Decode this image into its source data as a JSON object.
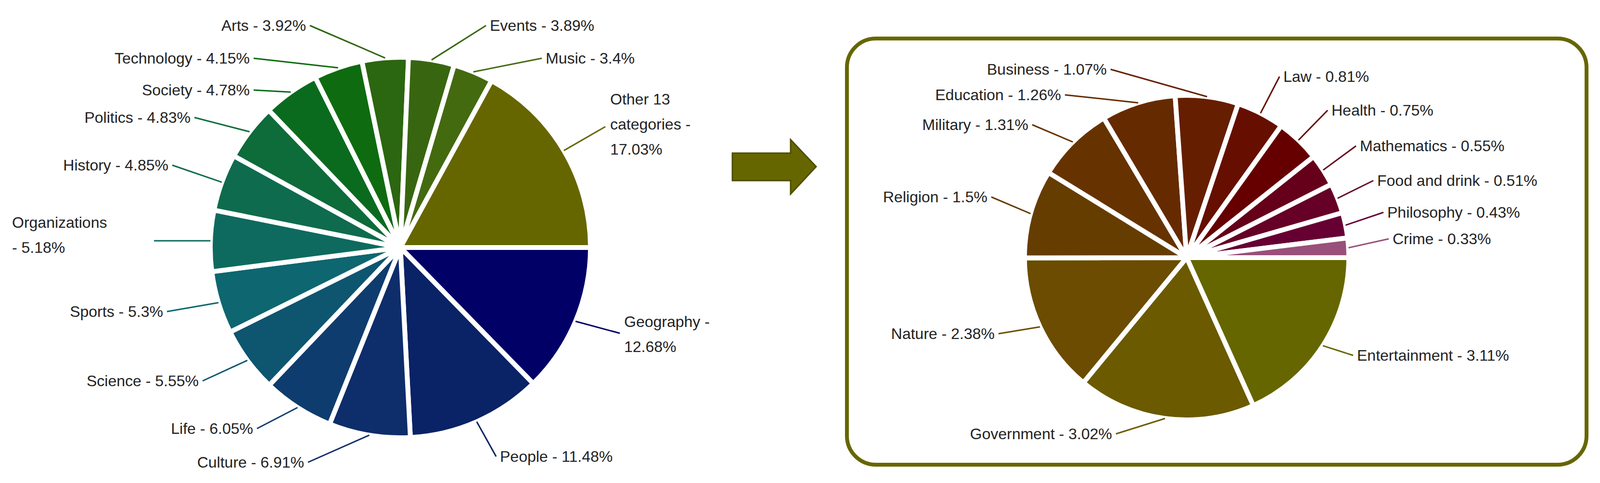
{
  "chart_data": [
    {
      "type": "pie",
      "categories": [
        "Geography",
        "People",
        "Culture",
        "Life",
        "Science",
        "Sports",
        "Organizations",
        "History",
        "Politics",
        "Society",
        "Technology",
        "Arts",
        "Events",
        "Music",
        "Other 13 categories"
      ],
      "values": [
        12.68,
        11.48,
        6.91,
        6.05,
        5.55,
        5.3,
        5.18,
        4.85,
        4.83,
        4.78,
        4.15,
        3.92,
        3.89,
        3.4,
        17.03
      ],
      "value_labels": [
        "Geography - 12.68%",
        "People - 11.48%",
        "Culture - 6.91%",
        "Life - 6.05%",
        "Science - 5.55%",
        "Sports - 5.3%",
        "Organizations - 5.18%",
        "History - 4.85%",
        "Politics - 4.83%",
        "Society - 4.78%",
        "Technology - 4.15%",
        "Arts - 3.92%",
        "Events - 3.89%",
        "Music - 3.4%",
        "Other 13 categories - 17.03%"
      ],
      "colors": [
        "#000066",
        "#0a2266",
        "#0d2d6b",
        "#0f3c6e",
        "#0e5570",
        "#0d6670",
        "#0e6a5e",
        "#0e6b4e",
        "#0e6b3a",
        "#0a6b1e",
        "#0f6b10",
        "#2b6610",
        "#386610",
        "#446a10",
        "#666600"
      ]
    },
    {
      "type": "pie",
      "categories": [
        "Entertainment",
        "Government",
        "Nature",
        "Religion",
        "Military",
        "Education",
        "Business",
        "Law",
        "Health",
        "Mathematics",
        "Food and drink",
        "Philosophy",
        "Crime"
      ],
      "values": [
        3.11,
        3.02,
        2.38,
        1.5,
        1.31,
        1.26,
        1.07,
        0.81,
        0.75,
        0.55,
        0.51,
        0.43,
        0.33
      ],
      "value_labels": [
        "Entertainment - 3.11%",
        "Government - 3.02%",
        "Nature - 2.38%",
        "Religion - 1.5%",
        "Military - 1.31%",
        "Education - 1.26%",
        "Business - 1.07%",
        "Law - 0.81%",
        "Health - 0.75%",
        "Mathematics - 0.55%",
        "Food and drink - 0.51%",
        "Philosophy - 0.43%",
        "Crime - 0.33%"
      ],
      "colors": [
        "#666600",
        "#6b5a00",
        "#6b4c00",
        "#663d00",
        "#663300",
        "#662a00",
        "#661e00",
        "#660f00",
        "#660000",
        "#66001a",
        "#660026",
        "#660033",
        "#99507a"
      ]
    }
  ]
}
